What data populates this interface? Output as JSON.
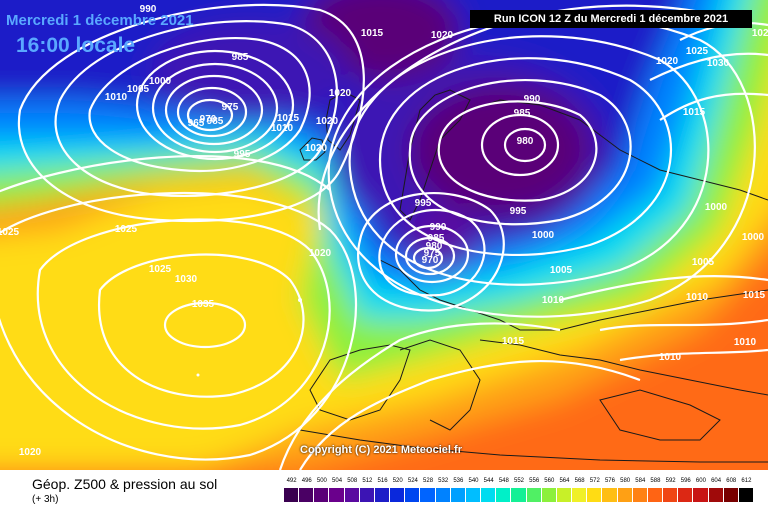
{
  "title": {
    "date": "Mercredi 1 décembre 2021",
    "time": "16:00 locale",
    "run": "Run ICON 12 Z du Mercredi 1 décembre 2021"
  },
  "copyright": "Copyright (C) 2021 Meteociel.fr",
  "legend": {
    "title": "Géop. Z500 & pression au sol",
    "subtitle": "(+ 3h)",
    "scale_values": [
      "492",
      "496",
      "500",
      "504",
      "508",
      "512",
      "516",
      "520",
      "524",
      "528",
      "532",
      "536",
      "540",
      "544",
      "548",
      "552",
      "556",
      "560",
      "564",
      "568",
      "572",
      "576",
      "580",
      "584",
      "588",
      "592",
      "596",
      "600",
      "604",
      "608",
      "612"
    ],
    "scale_colors": [
      "#3a0050",
      "#4a0064",
      "#5a0078",
      "#6a008c",
      "#5a0aa0",
      "#3c14b4",
      "#1e1ec8",
      "#0a28dc",
      "#0046f0",
      "#0064ff",
      "#0082ff",
      "#00a0ff",
      "#00beff",
      "#00dcf0",
      "#00f0c8",
      "#14f096",
      "#50f064",
      "#8cf03c",
      "#c8f028",
      "#f0f028",
      "#ffdc14",
      "#ffbe14",
      "#ffa014",
      "#ff8214",
      "#ff6414",
      "#f04614",
      "#dc2814",
      "#c81414",
      "#a00a0a",
      "#780000",
      "#000000"
    ]
  },
  "isobar_labels": [
    {
      "text": "990"
    },
    {
      "text": "985"
    },
    {
      "text": "1000"
    },
    {
      "text": "1005"
    },
    {
      "text": "1010"
    },
    {
      "text": "985"
    },
    {
      "text": "975"
    },
    {
      "text": "970"
    },
    {
      "text": "965"
    },
    {
      "text": "995"
    },
    {
      "text": "1010"
    },
    {
      "text": "1015"
    },
    {
      "text": "1020"
    },
    {
      "text": "1015"
    },
    {
      "text": "1020"
    },
    {
      "text": "1020"
    },
    {
      "text": "1020"
    },
    {
      "text": "1025"
    },
    {
      "text": "1025"
    },
    {
      "text": "1030"
    },
    {
      "text": "1035"
    },
    {
      "text": "1025"
    },
    {
      "text": "1020"
    },
    {
      "text": "1020"
    },
    {
      "text": "990"
    },
    {
      "text": "985"
    },
    {
      "text": "980"
    },
    {
      "text": "995"
    },
    {
      "text": "995"
    },
    {
      "text": "990"
    },
    {
      "text": "985"
    },
    {
      "text": "980"
    },
    {
      "text": "975"
    },
    {
      "text": "970"
    },
    {
      "text": "1000"
    },
    {
      "text": "1005"
    },
    {
      "text": "1010"
    },
    {
      "text": "1015"
    },
    {
      "text": "1020"
    },
    {
      "text": "1025"
    },
    {
      "text": "1030"
    },
    {
      "text": "1015"
    },
    {
      "text": "1000"
    },
    {
      "text": "1005"
    },
    {
      "text": "1010"
    },
    {
      "text": "1010"
    },
    {
      "text": "1010"
    },
    {
      "text": "1000"
    },
    {
      "text": "1015"
    },
    {
      "text": "1025"
    }
  ]
}
